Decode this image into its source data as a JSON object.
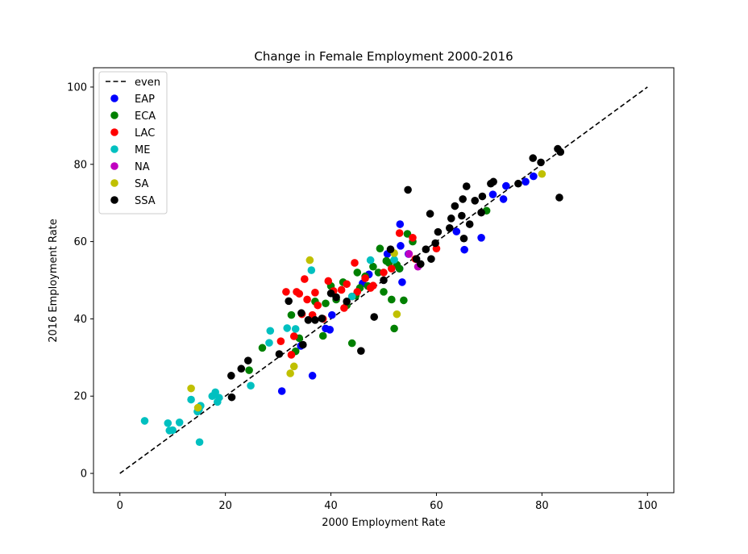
{
  "chart_data": {
    "type": "scatter",
    "title": "Change in Female Employment 2000-2016",
    "xlabel": "2000 Employment Rate",
    "ylabel": "2016 Employment Rate",
    "xlim": [
      -5,
      105
    ],
    "ylim": [
      -5,
      105
    ],
    "xticks": [
      0,
      20,
      40,
      60,
      80,
      100
    ],
    "yticks": [
      0,
      20,
      40,
      60,
      80,
      100
    ],
    "grid": false,
    "legend_position": "top-left",
    "reference_line": {
      "name": "even",
      "x": [
        0,
        100
      ],
      "y": [
        0,
        100
      ],
      "color": "#000000",
      "style": "dashed"
    },
    "series": [
      {
        "name": "EAP",
        "color": "#0000ff",
        "points": [
          [
            30.7,
            21.3
          ],
          [
            36.5,
            25.3
          ],
          [
            34.3,
            33.0
          ],
          [
            39.0,
            37.5
          ],
          [
            39.8,
            37.2
          ],
          [
            40.2,
            41.0
          ],
          [
            46.0,
            49.2
          ],
          [
            47.2,
            51.5
          ],
          [
            50.7,
            56.8
          ],
          [
            53.2,
            58.9
          ],
          [
            53.1,
            64.5
          ],
          [
            53.5,
            49.5
          ],
          [
            53.0,
            53.0
          ],
          [
            54.7,
            56.8
          ],
          [
            63.8,
            62.6
          ],
          [
            65.3,
            57.9
          ],
          [
            68.5,
            61.0
          ],
          [
            70.7,
            72.2
          ],
          [
            72.7,
            71.0
          ],
          [
            73.2,
            74.4
          ],
          [
            76.9,
            75.5
          ],
          [
            78.4,
            76.9
          ]
        ]
      },
      {
        "name": "ECA",
        "color": "#008000",
        "points": [
          [
            24.5,
            26.7
          ],
          [
            27.0,
            32.5
          ],
          [
            32.5,
            41.0
          ],
          [
            33.3,
            31.6
          ],
          [
            34.0,
            35.0
          ],
          [
            37.0,
            44.5
          ],
          [
            38.5,
            35.6
          ],
          [
            39.0,
            44.0
          ],
          [
            40.0,
            48.5
          ],
          [
            41.0,
            45.0
          ],
          [
            42.3,
            49.5
          ],
          [
            43.0,
            43.5
          ],
          [
            44.0,
            33.7
          ],
          [
            44.7,
            46.0
          ],
          [
            45.0,
            52.0
          ],
          [
            45.5,
            48.0
          ],
          [
            46.5,
            51.0
          ],
          [
            47.0,
            48.5
          ],
          [
            48.0,
            53.5
          ],
          [
            49.0,
            52.0
          ],
          [
            49.3,
            58.2
          ],
          [
            50.0,
            47.0
          ],
          [
            50.5,
            55.0
          ],
          [
            51.0,
            54.5
          ],
          [
            51.5,
            45.0
          ],
          [
            52.0,
            37.5
          ],
          [
            52.5,
            54.0
          ],
          [
            53.0,
            53.0
          ],
          [
            53.8,
            44.8
          ],
          [
            54.5,
            62.0
          ],
          [
            55.5,
            60.0
          ],
          [
            69.5,
            68.0
          ]
        ]
      },
      {
        "name": "LAC",
        "color": "#ff0000",
        "points": [
          [
            30.5,
            34.2
          ],
          [
            31.5,
            47.0
          ],
          [
            32.5,
            30.7
          ],
          [
            33.0,
            35.5
          ],
          [
            33.5,
            47.0
          ],
          [
            34.0,
            46.5
          ],
          [
            34.5,
            41.2
          ],
          [
            35.0,
            50.3
          ],
          [
            35.5,
            45.0
          ],
          [
            36.5,
            41.0
          ],
          [
            37.0,
            46.8
          ],
          [
            37.5,
            43.5
          ],
          [
            38.5,
            40.0
          ],
          [
            39.5,
            49.8
          ],
          [
            40.5,
            47.2
          ],
          [
            42.0,
            47.5
          ],
          [
            42.5,
            42.8
          ],
          [
            43.0,
            49.0
          ],
          [
            44.0,
            45.8
          ],
          [
            44.5,
            54.5
          ],
          [
            45.0,
            47.0
          ],
          [
            46.5,
            50.5
          ],
          [
            47.5,
            48.0
          ],
          [
            48.0,
            48.6
          ],
          [
            50.0,
            52.0
          ],
          [
            51.5,
            53.0
          ],
          [
            53.0,
            62.2
          ],
          [
            55.5,
            61.0
          ],
          [
            56.0,
            55.5
          ],
          [
            60.0,
            58.2
          ]
        ]
      },
      {
        "name": "ME",
        "color": "#00c0c0",
        "points": [
          [
            4.7,
            13.6
          ],
          [
            9.1,
            13.0
          ],
          [
            9.4,
            11.1
          ],
          [
            10.0,
            11.2
          ],
          [
            11.3,
            13.2
          ],
          [
            13.5,
            19.1
          ],
          [
            14.7,
            16.0
          ],
          [
            15.0,
            16.5
          ],
          [
            15.1,
            8.1
          ],
          [
            15.3,
            17.5
          ],
          [
            17.5,
            20.0
          ],
          [
            18.1,
            21.0
          ],
          [
            18.5,
            18.5
          ],
          [
            18.8,
            19.6
          ],
          [
            24.8,
            22.7
          ],
          [
            28.3,
            33.8
          ],
          [
            28.5,
            36.9
          ],
          [
            31.7,
            37.6
          ],
          [
            33.3,
            37.4
          ],
          [
            36.3,
            52.6
          ],
          [
            44.0,
            45.8
          ],
          [
            47.5,
            55.2
          ],
          [
            52.0,
            55.3
          ]
        ]
      },
      {
        "name": "NA",
        "color": "#c000c0",
        "points": [
          [
            54.8,
            56.8
          ],
          [
            56.5,
            53.5
          ]
        ]
      },
      {
        "name": "SA",
        "color": "#c0c000",
        "points": [
          [
            13.5,
            22.0
          ],
          [
            14.8,
            17.0
          ],
          [
            32.3,
            25.9
          ],
          [
            33.0,
            27.7
          ],
          [
            36.0,
            55.2
          ],
          [
            52.0,
            57.0
          ],
          [
            52.5,
            41.2
          ],
          [
            80.0,
            77.5
          ]
        ]
      },
      {
        "name": "SSA",
        "color": "#000000",
        "points": [
          [
            21.1,
            25.3
          ],
          [
            21.2,
            19.7
          ],
          [
            23.0,
            27.1
          ],
          [
            24.3,
            29.2
          ],
          [
            30.2,
            30.9
          ],
          [
            32.0,
            44.6
          ],
          [
            34.4,
            41.5
          ],
          [
            34.7,
            33.3
          ],
          [
            35.7,
            39.7
          ],
          [
            37.0,
            39.7
          ],
          [
            38.3,
            40.1
          ],
          [
            40.0,
            46.6
          ],
          [
            41.0,
            45.6
          ],
          [
            43.0,
            44.5
          ],
          [
            45.7,
            31.7
          ],
          [
            48.2,
            40.5
          ],
          [
            50.0,
            50.0
          ],
          [
            51.3,
            58.0
          ],
          [
            54.6,
            73.4
          ],
          [
            56.2,
            55.5
          ],
          [
            57.0,
            54.2
          ],
          [
            58.0,
            58.0
          ],
          [
            58.8,
            67.2
          ],
          [
            59.0,
            55.5
          ],
          [
            59.8,
            59.6
          ],
          [
            60.3,
            62.5
          ],
          [
            62.5,
            63.5
          ],
          [
            62.8,
            66.0
          ],
          [
            63.5,
            69.2
          ],
          [
            64.8,
            66.7
          ],
          [
            65.0,
            71.0
          ],
          [
            65.2,
            60.8
          ],
          [
            65.7,
            74.3
          ],
          [
            66.3,
            64.5
          ],
          [
            67.3,
            70.6
          ],
          [
            68.5,
            67.5
          ],
          [
            68.7,
            71.7
          ],
          [
            70.3,
            75.0
          ],
          [
            70.8,
            75.5
          ],
          [
            75.5,
            75.0
          ],
          [
            78.3,
            81.6
          ],
          [
            79.8,
            80.5
          ],
          [
            83.0,
            84.0
          ],
          [
            83.3,
            71.4
          ],
          [
            83.5,
            83.2
          ]
        ]
      }
    ]
  }
}
